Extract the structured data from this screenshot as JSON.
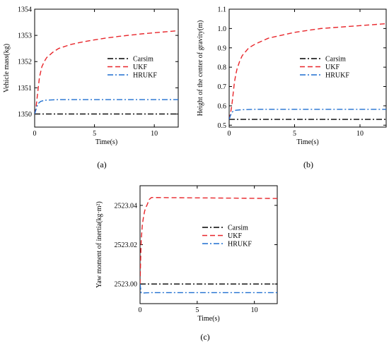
{
  "styles": {
    "carsim": {
      "color": "#000000",
      "dash": "8 3 2 3"
    },
    "ukf": {
      "color": "#e8262b",
      "dash": "7 4"
    },
    "hrukf": {
      "color": "#1f6fd0",
      "dash": "8 3 2 3"
    }
  },
  "chart_data": [
    {
      "type": "line",
      "caption": "(a)",
      "xlabel": "Time(s)",
      "ylabel": "Vehicle mass(kg)",
      "xlim": [
        0,
        12
      ],
      "ylim": [
        1349.5,
        1354
      ],
      "xticks": [
        0,
        5,
        10
      ],
      "yticks": [
        1350,
        1351,
        1352,
        1353,
        1354
      ],
      "ytick_labels": [
        "1350",
        "1351",
        "1352",
        "1353",
        "1354"
      ],
      "legend": "center-right",
      "series": [
        {
          "name": "Carsim",
          "style": "carsim",
          "x": [
            0,
            12
          ],
          "y": [
            1350,
            1350
          ]
        },
        {
          "name": "UKF",
          "style": "ukf",
          "x": [
            0,
            0.1,
            0.2,
            0.3,
            0.4,
            0.6,
            0.8,
            1.0,
            1.5,
            2,
            3,
            4,
            5,
            6,
            7,
            8,
            9,
            10,
            11,
            12
          ],
          "y": [
            1350.0,
            1350.2,
            1350.6,
            1351.0,
            1351.4,
            1351.8,
            1352.0,
            1352.15,
            1352.35,
            1352.5,
            1352.65,
            1352.75,
            1352.83,
            1352.9,
            1352.96,
            1353.01,
            1353.06,
            1353.1,
            1353.14,
            1353.18
          ]
        },
        {
          "name": "HRUKF",
          "style": "hrukf",
          "x": [
            0,
            0.1,
            0.2,
            0.3,
            0.5,
            0.8,
            1.0,
            1.5,
            2,
            3,
            12
          ],
          "y": [
            1350.0,
            1350.15,
            1350.3,
            1350.4,
            1350.48,
            1350.52,
            1350.53,
            1350.54,
            1350.55,
            1350.55,
            1350.55
          ]
        }
      ]
    },
    {
      "type": "line",
      "caption": "(b)",
      "xlabel": "Time(s)",
      "ylabel": "Height of the center of gravity(m)",
      "xlim": [
        0,
        12
      ],
      "ylim": [
        0.49,
        1.1
      ],
      "xticks": [
        0,
        5,
        10
      ],
      "yticks": [
        0.5,
        0.6,
        0.7,
        0.8,
        0.9,
        1.0,
        1.1
      ],
      "ytick_labels": [
        "0.5",
        "0.6",
        "0.7",
        "0.8",
        "0.9",
        "1.0",
        "1.1"
      ],
      "legend": "center-right",
      "series": [
        {
          "name": "Carsim",
          "style": "carsim",
          "x": [
            0,
            12
          ],
          "y": [
            0.53,
            0.53
          ]
        },
        {
          "name": "UKF",
          "style": "ukf",
          "x": [
            0,
            0.1,
            0.2,
            0.3,
            0.4,
            0.5,
            0.6,
            0.8,
            1.0,
            1.5,
            2,
            3,
            4,
            5,
            6,
            7,
            8,
            9,
            10,
            11,
            12
          ],
          "y": [
            0.53,
            0.56,
            0.6,
            0.66,
            0.72,
            0.76,
            0.79,
            0.83,
            0.86,
            0.9,
            0.92,
            0.95,
            0.965,
            0.98,
            0.99,
            1.0,
            1.005,
            1.01,
            1.015,
            1.02,
            1.025
          ]
        },
        {
          "name": "HRUKF",
          "style": "hrukf",
          "x": [
            0,
            0.1,
            0.2,
            0.3,
            0.5,
            0.8,
            1.0,
            1.5,
            2,
            12
          ],
          "y": [
            0.53,
            0.55,
            0.565,
            0.572,
            0.577,
            0.579,
            0.58,
            0.581,
            0.582,
            0.582
          ]
        }
      ]
    },
    {
      "type": "line",
      "caption": "(c)",
      "xlabel": "Time(s)",
      "ylabel": "Yaw moment of inertia(kg·m²)",
      "xlim": [
        0,
        12
      ],
      "ylim": [
        2522.99,
        2523.05
      ],
      "xticks": [
        0,
        5,
        10
      ],
      "yticks": [
        2523.0,
        2523.02,
        2523.04
      ],
      "ytick_labels": [
        "2523.00",
        "2523.02",
        "2523.04"
      ],
      "legend": "center-right",
      "series": [
        {
          "name": "Carsim",
          "style": "carsim",
          "x": [
            0,
            12
          ],
          "y": [
            2523.0,
            2523.0
          ]
        },
        {
          "name": "UKF",
          "style": "ukf",
          "x": [
            0,
            0.05,
            0.1,
            0.2,
            0.3,
            0.4,
            0.5,
            0.6,
            0.8,
            1.0,
            12
          ],
          "y": [
            2523.0,
            2523.012,
            2523.022,
            2523.03,
            2523.034,
            2523.037,
            2523.039,
            2523.04,
            2523.043,
            2523.044,
            2523.0435
          ]
        },
        {
          "name": "HRUKF",
          "style": "hrukf",
          "x": [
            0,
            0.1,
            0.2,
            0.3,
            0.5,
            1.0,
            2,
            12
          ],
          "y": [
            2523.0,
            2522.9955,
            2522.9953,
            2522.9954,
            2522.9955,
            2522.9956,
            2522.9956,
            2522.9956
          ]
        }
      ]
    }
  ]
}
